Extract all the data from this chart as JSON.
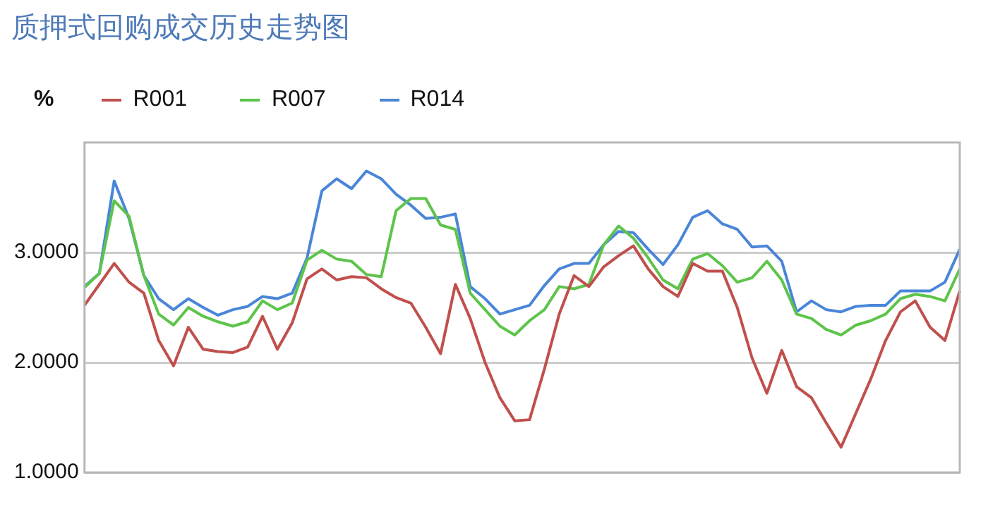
{
  "chart_data": {
    "type": "line",
    "title": "质押式回购成交历史走势图",
    "ylabel": "%",
    "categories": [
      null,
      null,
      null,
      null,
      null,
      null,
      null,
      null,
      null,
      null,
      null,
      null,
      null,
      null,
      null,
      null,
      null,
      null,
      null,
      null,
      null,
      null,
      null,
      null,
      null,
      null,
      null,
      null,
      null,
      null,
      null,
      null,
      null,
      null,
      null,
      null,
      null,
      null,
      null,
      null,
      null,
      null,
      null,
      null,
      null,
      null,
      null,
      null,
      null,
      null,
      null,
      null,
      null,
      null,
      null,
      null,
      null,
      null,
      null,
      null
    ],
    "ylim": [
      1,
      4
    ],
    "yticks": [
      {
        "value": 1,
        "label": "1.0000"
      },
      {
        "value": 2,
        "label": "2.0000"
      },
      {
        "value": 3,
        "label": "3.0000"
      }
    ],
    "tick_labels": "y",
    "grid": "y",
    "legend": "top left",
    "marker": "none",
    "line_style": "solid",
    "series": [
      {
        "name": "R001",
        "color": "#c0504d",
        "values": [
          2.52,
          2.71,
          2.9,
          2.73,
          2.63,
          2.2,
          1.97,
          2.32,
          2.12,
          2.1,
          2.09,
          2.14,
          2.42,
          2.12,
          2.36,
          2.76,
          2.85,
          2.75,
          2.78,
          2.77,
          2.67,
          2.59,
          2.54,
          2.32,
          2.08,
          2.71,
          2.4,
          2.0,
          1.68,
          1.47,
          1.48,
          1.94,
          2.44,
          2.79,
          2.69,
          2.87,
          2.97,
          3.06,
          2.85,
          2.69,
          2.6,
          2.9,
          2.83,
          2.83,
          2.5,
          2.04,
          1.72,
          2.11,
          1.78,
          1.68,
          1.45,
          1.23,
          1.54,
          1.85,
          2.2,
          2.46,
          2.56,
          2.32,
          2.2,
          2.65
        ]
      },
      {
        "name": "R007",
        "color": "#5dc44a",
        "values": [
          2.68,
          2.81,
          3.47,
          3.33,
          2.79,
          2.44,
          2.34,
          2.5,
          2.42,
          2.37,
          2.33,
          2.37,
          2.56,
          2.48,
          2.54,
          2.93,
          3.02,
          2.94,
          2.92,
          2.8,
          2.78,
          3.38,
          3.49,
          3.49,
          3.25,
          3.21,
          2.63,
          2.48,
          2.33,
          2.25,
          2.38,
          2.48,
          2.69,
          2.67,
          2.71,
          3.07,
          3.24,
          3.13,
          2.95,
          2.75,
          2.67,
          2.94,
          2.99,
          2.88,
          2.73,
          2.77,
          2.92,
          2.75,
          2.44,
          2.4,
          2.3,
          2.25,
          2.34,
          2.38,
          2.44,
          2.58,
          2.62,
          2.6,
          2.56,
          2.85
        ]
      },
      {
        "name": "R014",
        "color": "#4a86d8",
        "values": [
          2.69,
          2.81,
          3.65,
          3.31,
          2.79,
          2.58,
          2.48,
          2.58,
          2.5,
          2.43,
          2.48,
          2.51,
          2.6,
          2.58,
          2.63,
          2.95,
          3.56,
          3.67,
          3.58,
          3.74,
          3.67,
          3.53,
          3.43,
          3.31,
          3.32,
          3.35,
          2.69,
          2.58,
          2.44,
          2.48,
          2.52,
          2.7,
          2.85,
          2.9,
          2.9,
          3.07,
          3.19,
          3.18,
          3.03,
          2.89,
          3.07,
          3.32,
          3.38,
          3.26,
          3.21,
          3.05,
          3.06,
          2.92,
          2.46,
          2.56,
          2.48,
          2.46,
          2.51,
          2.52,
          2.52,
          2.65,
          2.65,
          2.65,
          2.73,
          3.03
        ]
      }
    ]
  }
}
